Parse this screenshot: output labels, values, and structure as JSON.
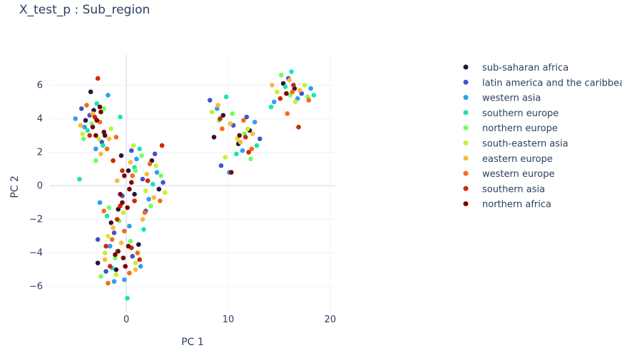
{
  "chart_data": {
    "type": "scatter",
    "title": "X_test_p : Sub_region",
    "xlabel": "PC 1",
    "ylabel": "PC 2",
    "xlim": [
      -7.5,
      20.5
    ],
    "ylim": [
      -7.5,
      7.8
    ],
    "xticks": [
      0,
      10,
      20
    ],
    "yticks": [
      -6,
      -4,
      -2,
      0,
      2,
      4,
      6
    ],
    "grid": true,
    "legend_position": "right",
    "series": [
      {
        "name": "sub-saharan africa",
        "color": "#30123b",
        "points": [
          [
            -3.2,
            4.5
          ],
          [
            -2.1,
            3.0
          ],
          [
            -0.5,
            1.8
          ],
          [
            0.8,
            -0.5
          ],
          [
            -1.5,
            -2.2
          ],
          [
            -2.8,
            -4.6
          ],
          [
            1.2,
            -3.5
          ],
          [
            9.5,
            4.2
          ],
          [
            12.1,
            3.3
          ],
          [
            16.5,
            5.8
          ],
          [
            -4.0,
            3.9
          ],
          [
            0.2,
            0.9
          ],
          [
            2.5,
            1.5
          ],
          [
            -1.0,
            -5.0
          ],
          [
            11.0,
            2.5
          ],
          [
            -3.5,
            5.6
          ],
          [
            -0.8,
            -1.4
          ],
          [
            3.2,
            -0.2
          ],
          [
            8.6,
            2.9
          ],
          [
            15.4,
            6.1
          ]
        ]
      },
      {
        "name": "latin america and the caribbean",
        "color": "#4454c4",
        "points": [
          [
            -3.6,
            4.2
          ],
          [
            -2.4,
            2.6
          ],
          [
            0.5,
            2.1
          ],
          [
            1.6,
            0.4
          ],
          [
            -1.2,
            -2.8
          ],
          [
            -2.0,
            -5.1
          ],
          [
            0.6,
            -4.2
          ],
          [
            8.2,
            5.1
          ],
          [
            10.5,
            3.6
          ],
          [
            13.1,
            2.8
          ],
          [
            17.2,
            5.5
          ],
          [
            -4.4,
            4.6
          ],
          [
            2.8,
            1.9
          ],
          [
            3.6,
            0.2
          ],
          [
            -0.4,
            -0.6
          ],
          [
            9.3,
            1.2
          ],
          [
            11.8,
            4.1
          ],
          [
            15.9,
            6.4
          ],
          [
            -2.8,
            -3.2
          ],
          [
            1.9,
            -1.5
          ]
        ]
      },
      {
        "name": "western asia",
        "color": "#2f9df4",
        "points": [
          [
            -4.1,
            3.5
          ],
          [
            -1.8,
            5.4
          ],
          [
            1.0,
            1.6
          ],
          [
            2.2,
            -0.8
          ],
          [
            -1.6,
            -3.6
          ],
          [
            -0.2,
            -5.6
          ],
          [
            8.9,
            4.6
          ],
          [
            11.4,
            2.1
          ],
          [
            14.5,
            5.0
          ],
          [
            18.1,
            5.8
          ],
          [
            -5.0,
            4.0
          ],
          [
            3.0,
            0.8
          ],
          [
            0.3,
            -2.4
          ],
          [
            -2.6,
            -1.0
          ],
          [
            10.1,
            0.8
          ],
          [
            12.6,
            3.8
          ],
          [
            16.8,
            5.2
          ],
          [
            -3.0,
            2.2
          ],
          [
            1.4,
            -4.8
          ],
          [
            -1.2,
            -5.7
          ]
        ]
      },
      {
        "name": "southern europe",
        "color": "#1ae4b6",
        "points": [
          [
            -2.9,
            4.9
          ],
          [
            -0.6,
            4.1
          ],
          [
            1.3,
            2.2
          ],
          [
            -1.9,
            -1.8
          ],
          [
            0.1,
            -6.7
          ],
          [
            -4.6,
            0.4
          ],
          [
            9.8,
            5.3
          ],
          [
            12.8,
            2.4
          ],
          [
            15.6,
            5.9
          ],
          [
            18.4,
            5.4
          ],
          [
            -3.8,
            3.3
          ],
          [
            2.6,
            0.1
          ],
          [
            -0.9,
            -3.9
          ],
          [
            10.8,
            1.9
          ],
          [
            14.2,
            4.7
          ],
          [
            -2.3,
            2.4
          ],
          [
            1.7,
            -2.6
          ],
          [
            16.2,
            6.8
          ],
          [
            -1.4,
            -4.9
          ],
          [
            0.8,
            1.1
          ]
        ]
      },
      {
        "name": "northern europe",
        "color": "#72fe5e",
        "points": [
          [
            -3.4,
            3.7
          ],
          [
            -2.2,
            4.6
          ],
          [
            0.9,
            0.9
          ],
          [
            2.4,
            -1.2
          ],
          [
            -1.1,
            -4.3
          ],
          [
            -2.5,
            -5.4
          ],
          [
            9.1,
            3.9
          ],
          [
            11.6,
            3.1
          ],
          [
            15.2,
            6.6
          ],
          [
            17.8,
            5.3
          ],
          [
            -4.2,
            2.8
          ],
          [
            1.5,
            1.8
          ],
          [
            -0.7,
            -2.1
          ],
          [
            3.4,
            0.6
          ],
          [
            12.2,
            1.6
          ],
          [
            16.1,
            5.4
          ],
          [
            -3.0,
            1.5
          ],
          [
            0.4,
            -3.3
          ],
          [
            -1.7,
            -1.3
          ],
          [
            10.4,
            4.3
          ]
        ]
      },
      {
        "name": "south-eastern asia",
        "color": "#c8ef34",
        "points": [
          [
            -3.0,
            4.0
          ],
          [
            -1.5,
            3.4
          ],
          [
            0.7,
            2.4
          ],
          [
            1.9,
            -0.3
          ],
          [
            -1.8,
            -3.0
          ],
          [
            -1.0,
            -5.3
          ],
          [
            8.4,
            4.4
          ],
          [
            10.9,
            2.8
          ],
          [
            14.8,
            5.6
          ],
          [
            17.5,
            6.0
          ],
          [
            -4.3,
            3.1
          ],
          [
            2.9,
            1.2
          ],
          [
            -0.3,
            -1.6
          ],
          [
            0.9,
            -4.6
          ],
          [
            11.9,
            3.4
          ],
          [
            16.6,
            5.0
          ],
          [
            -2.7,
            2.8
          ],
          [
            3.8,
            -0.4
          ],
          [
            -2.1,
            -4.0
          ],
          [
            9.7,
            1.7
          ]
        ]
      },
      {
        "name": "eastern europe",
        "color": "#faba39",
        "points": [
          [
            -3.3,
            4.3
          ],
          [
            -1.7,
            2.8
          ],
          [
            0.4,
            1.4
          ],
          [
            2.0,
            0.7
          ],
          [
            -1.3,
            -2.5
          ],
          [
            -2.1,
            -4.4
          ],
          [
            0.9,
            -5.0
          ],
          [
            9.0,
            4.8
          ],
          [
            11.2,
            2.6
          ],
          [
            14.3,
            6.0
          ],
          [
            17.0,
            5.7
          ],
          [
            -4.5,
            3.6
          ],
          [
            2.7,
            -0.7
          ],
          [
            -0.5,
            -3.4
          ],
          [
            12.4,
            3.1
          ],
          [
            16.0,
            6.3
          ],
          [
            -2.5,
            1.9
          ],
          [
            1.6,
            -2.0
          ],
          [
            10.2,
            3.7
          ],
          [
            -0.9,
            0.3
          ]
        ]
      },
      {
        "name": "western europe",
        "color": "#f66b19",
        "points": [
          [
            -2.6,
            3.8
          ],
          [
            -1.9,
            2.2
          ],
          [
            0.6,
            0.6
          ],
          [
            1.8,
            -1.6
          ],
          [
            -1.4,
            -3.2
          ],
          [
            -1.8,
            -5.8
          ],
          [
            1.1,
            -4.0
          ],
          [
            9.4,
            3.4
          ],
          [
            12.3,
            2.2
          ],
          [
            15.8,
            4.3
          ],
          [
            17.9,
            5.1
          ],
          [
            -3.9,
            4.8
          ],
          [
            2.3,
            1.3
          ],
          [
            -0.2,
            -2.7
          ],
          [
            3.3,
            -0.9
          ],
          [
            11.5,
            3.9
          ],
          [
            16.3,
            5.6
          ],
          [
            -2.2,
            -1.5
          ],
          [
            0.3,
            -5.2
          ],
          [
            -1.0,
            2.9
          ]
        ]
      },
      {
        "name": "southern asia",
        "color": "#cb2a04",
        "points": [
          [
            -2.8,
            6.4
          ],
          [
            -3.1,
            4.1
          ],
          [
            -1.3,
            1.5
          ],
          [
            0.8,
            -0.9
          ],
          [
            -0.9,
            -2.0
          ],
          [
            -1.6,
            -4.8
          ],
          [
            0.5,
            -3.7
          ],
          [
            9.2,
            4.0
          ],
          [
            11.7,
            2.9
          ],
          [
            15.1,
            5.2
          ],
          [
            16.9,
            3.5
          ],
          [
            -3.6,
            3.0
          ],
          [
            2.1,
            0.3
          ],
          [
            3.5,
            2.4
          ],
          [
            -0.6,
            -1.2
          ],
          [
            12.0,
            2.0
          ],
          [
            16.4,
            6.0
          ],
          [
            -2.0,
            -3.6
          ],
          [
            1.3,
            -4.4
          ],
          [
            -0.4,
            0.9
          ]
        ]
      },
      {
        "name": "northern africa",
        "color": "#7a0403",
        "points": [
          [
            -2.9,
            3.9
          ],
          [
            -2.5,
            4.4
          ],
          [
            -3.3,
            3.5
          ],
          [
            -2.2,
            3.2
          ],
          [
            -0.2,
            0.6
          ],
          [
            0.3,
            -0.2
          ],
          [
            -0.4,
            -1.0
          ],
          [
            0.1,
            -1.3
          ],
          [
            -0.6,
            -0.5
          ],
          [
            -0.8,
            -3.9
          ],
          [
            -0.3,
            -4.3
          ],
          [
            -1.1,
            -4.1
          ],
          [
            0.2,
            -3.6
          ],
          [
            -2.6,
            4.7
          ],
          [
            -3.0,
            3.0
          ],
          [
            0.5,
            0.2
          ],
          [
            -0.1,
            -4.8
          ],
          [
            10.3,
            0.8
          ],
          [
            11.1,
            3.0
          ],
          [
            15.7,
            5.5
          ]
        ]
      }
    ]
  }
}
